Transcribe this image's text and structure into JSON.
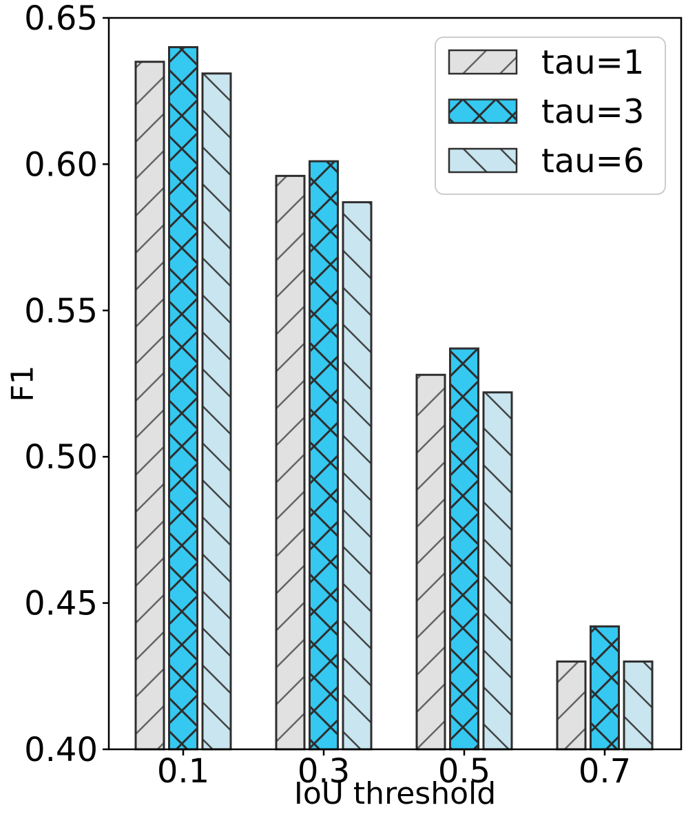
{
  "chart_data": {
    "type": "bar",
    "title": "",
    "xlabel": "IoU threshold",
    "ylabel": "F1",
    "categories": [
      "0.1",
      "0.3",
      "0.5",
      "0.7"
    ],
    "series": [
      {
        "name": "tau=1",
        "values": [
          0.635,
          0.596,
          0.528,
          0.43
        ],
        "fill": "#e1e1e1",
        "hatch": "/",
        "hatch_color": "#5f5f5f"
      },
      {
        "name": "tau=3",
        "values": [
          0.64,
          0.601,
          0.537,
          0.442
        ],
        "fill": "#35c8f0",
        "hatch": "x",
        "hatch_color": "#2e2e2e"
      },
      {
        "name": "tau=6",
        "values": [
          0.631,
          0.587,
          0.522,
          0.43
        ],
        "fill": "#c9e5ef",
        "hatch": "\\",
        "hatch_color": "#3c3c3c"
      }
    ],
    "ylim": [
      0.4,
      0.65
    ],
    "ytick_labels": [
      "0.65",
      "0.60",
      "0.55",
      "0.50",
      "0.45",
      "0.40"
    ],
    "ytick_values": [
      0.65,
      0.6,
      0.55,
      0.5,
      0.45,
      0.4
    ],
    "legend": {
      "position": "upper right",
      "entries": [
        "tau=1",
        "tau=3",
        "tau=6"
      ]
    },
    "grid": false,
    "edge_color": "#2e2e2e",
    "axis_color": "#000000"
  }
}
